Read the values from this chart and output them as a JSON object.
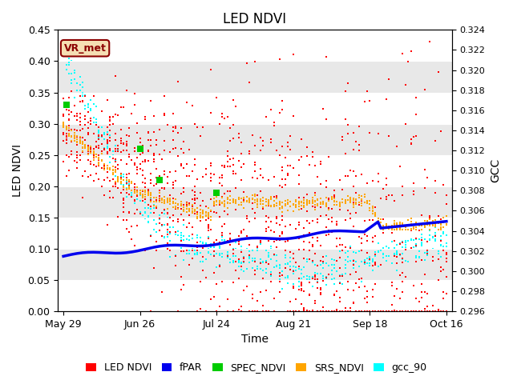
{
  "title": "LED NDVI",
  "xlabel": "Time",
  "ylabel_left": "LED NDVI",
  "ylabel_right": "GCC",
  "ylim_left": [
    0.0,
    0.45
  ],
  "ylim_right": [
    0.296,
    0.324
  ],
  "annotation": "VR_met",
  "annotation_color": "#8B0000",
  "annotation_bg": "#F5DEB3",
  "background_color": "#ffffff",
  "band_color": "#e8e8e8",
  "series": {
    "LED_NDVI": {
      "color": "#FF0000",
      "marker": "s",
      "size": 4,
      "label": "LED NDVI"
    },
    "fPAR": {
      "color": "#0000EE",
      "label": "fPAR",
      "linewidth": 2.5
    },
    "SPEC_NDVI": {
      "color": "#00CC00",
      "marker": "s",
      "size": 30,
      "label": "SPEC_NDVI"
    },
    "SRS_NDVI": {
      "color": "#FFA500",
      "marker": "s",
      "size": 4,
      "label": "SRS_NDVI"
    },
    "gcc_90": {
      "color": "#00FFFF",
      "marker": "s",
      "size": 4,
      "label": "gcc_90"
    }
  },
  "x_ticks_labels": [
    "May 29",
    "Jun 26",
    "Jul 24",
    "Aug 21",
    "Sep 18",
    "Oct 16"
  ],
  "x_ticks_days": [
    0,
    28,
    56,
    84,
    112,
    140
  ],
  "total_days": 140,
  "grid_bands": [
    [
      0.05,
      0.1
    ],
    [
      0.15,
      0.2
    ],
    [
      0.25,
      0.3
    ],
    [
      0.35,
      0.4
    ]
  ],
  "yticks": [
    0.0,
    0.05,
    0.1,
    0.15,
    0.2,
    0.25,
    0.3,
    0.35,
    0.4,
    0.45
  ],
  "gcc_ticks": [
    0.296,
    0.298,
    0.3,
    0.302,
    0.304,
    0.306,
    0.308,
    0.31,
    0.312,
    0.314,
    0.316,
    0.318,
    0.32,
    0.322,
    0.324
  ]
}
